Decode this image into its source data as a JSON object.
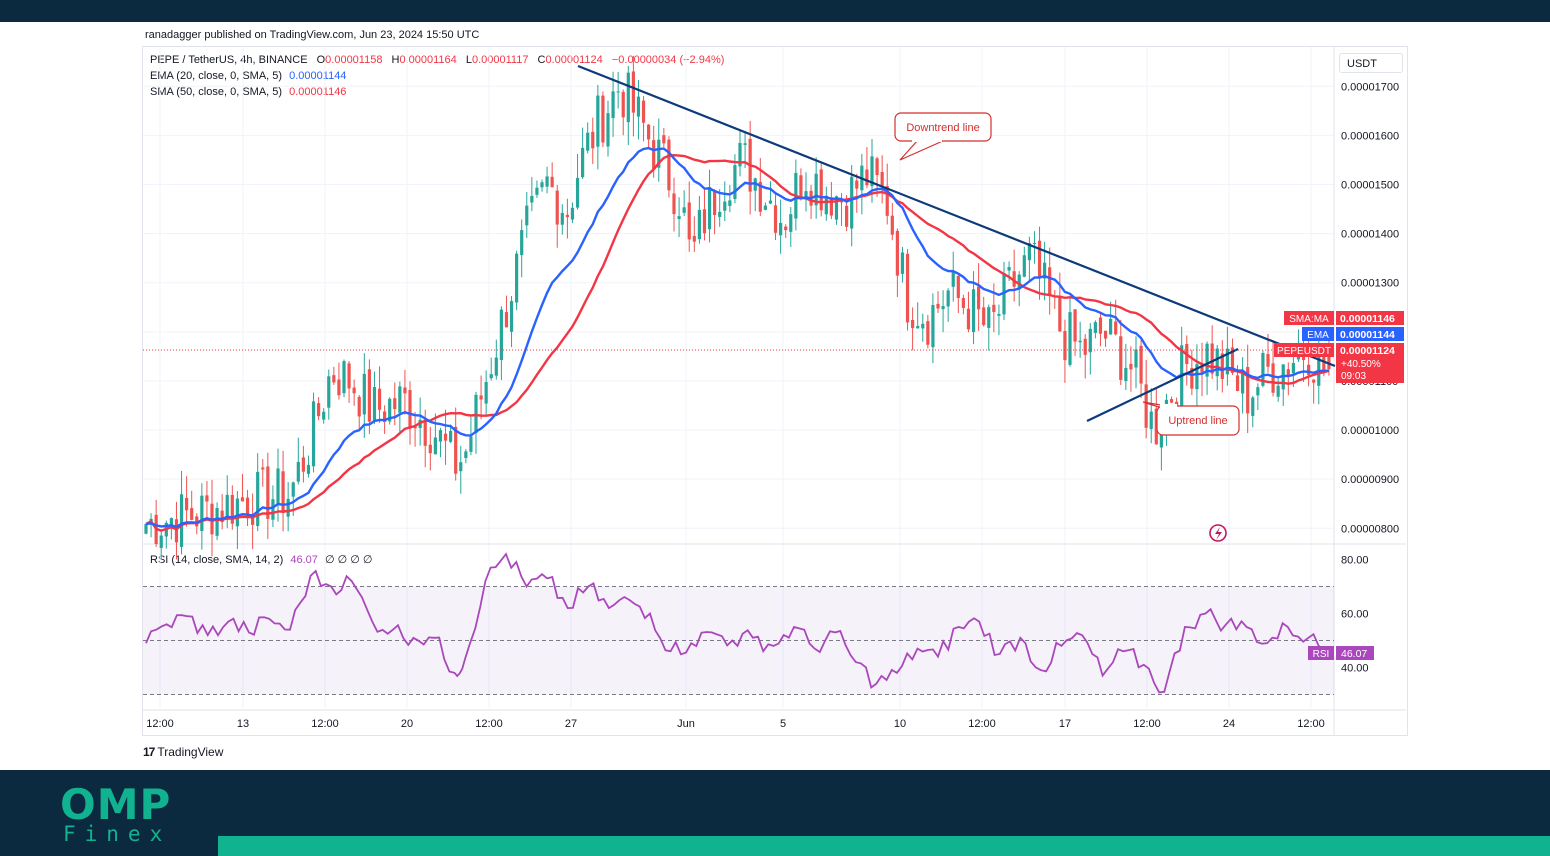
{
  "header": {
    "published": "ranadagger published on TradingView.com, Jun 23, 2024 15:50 UTC"
  },
  "legend": {
    "symbol": "PEPE / TetherUS, 4h, BINANCE",
    "o_label": "O",
    "o_value": "0.00001158",
    "h_label": "H",
    "h_value": "0.00001164",
    "l_label": "L",
    "l_value": "0.00001117",
    "c_label": "C",
    "c_value": "0.00001124",
    "change": "−0.00000034 (−2.94%)",
    "ema_label": "EMA (20, close, 0, SMA, 5)",
    "ema_value": "0.00001144",
    "sma_label": "SMA (50, close, 0, SMA, 5)",
    "sma_value": "0.00001146",
    "rsi_label": "RSI (14, close, SMA, 14, 2)",
    "rsi_value": "46.07",
    "rsi_extra": "∅ ∅ ∅ ∅"
  },
  "price_axis": {
    "unit": "USDT"
  },
  "annotations": {
    "downtrend": "Downtrend line",
    "uptrend": "Uptrend line"
  },
  "price_labels": {
    "sma_tag": "SMA:MA",
    "sma_value": "0.00001146",
    "ema_tag": "EMA",
    "ema_value": "0.00001144",
    "symbol_tag": "PEPEUSDT",
    "last_value": "0.00001124",
    "change_pct": "+40.50%",
    "countdown": "09:03",
    "rsi_tag": "RSI",
    "rsi_value": "46.07"
  },
  "branding": {
    "tradingview": "TradingView",
    "logo_main": "OMP",
    "logo_sub": "Finex"
  },
  "colors": {
    "up": "#26a69a",
    "down": "#ef5350",
    "ema": "#2962ff",
    "sma": "#f23645",
    "rsi": "#ab47bc",
    "trend": "#0d3a7a",
    "accent": "#11b28f",
    "navy": "#0b2a3f"
  },
  "chart_data": [
    {
      "type": "candlestick",
      "title": "PEPE / TetherUS, 4h, BINANCE",
      "ylabel": "USDT",
      "ylim": [
        7.7e-06,
        1.78e-05
      ],
      "y_ticks": [
        "0.00001700",
        "0.00001600",
        "0.00001500",
        "0.00001400",
        "0.00001300",
        "0.00001200",
        "0.00001100",
        "0.00001000",
        "0.00000900",
        "0.00000800"
      ],
      "x_ticks": [
        "12:00",
        "13",
        "12:00",
        "20",
        "12:00",
        "27",
        "Jun",
        "5",
        "10",
        "12:00",
        "17",
        "12:00",
        "24",
        "12:00"
      ],
      "close_path": [
        [
          0,
          8.1e-06
        ],
        [
          5,
          8.3e-06
        ],
        [
          10,
          8.6e-06
        ],
        [
          14,
          8.7e-06
        ],
        [
          16,
          9.8e-06
        ],
        [
          18,
          1.12e-05
        ],
        [
          20,
          1.1e-05
        ],
        [
          22,
          1.04e-05
        ],
        [
          25,
          1.06e-05
        ],
        [
          28,
          1e-05
        ],
        [
          30,
          9.3e-06
        ],
        [
          31,
          9.5e-06
        ],
        [
          33,
          1.1e-05
        ],
        [
          35,
          1.25e-05
        ],
        [
          37,
          1.4e-05
        ],
        [
          39,
          1.5e-05
        ],
        [
          41,
          1.45e-05
        ],
        [
          42,
          1.53e-05
        ],
        [
          44,
          1.63e-05
        ],
        [
          46,
          1.7e-05
        ],
        [
          48,
          1.63e-05
        ],
        [
          50,
          1.55e-05
        ],
        [
          52,
          1.47e-05
        ],
        [
          53,
          1.34e-05
        ],
        [
          54,
          1.42e-05
        ],
        [
          56,
          1.51e-05
        ],
        [
          58,
          1.55e-05
        ],
        [
          60,
          1.49e-05
        ],
        [
          62,
          1.43e-05
        ],
        [
          64,
          1.53e-05
        ],
        [
          66,
          1.49e-05
        ],
        [
          68,
          1.47e-05
        ],
        [
          70,
          1.52e-05
        ],
        [
          72,
          1.47e-05
        ],
        [
          73,
          1.37e-05
        ],
        [
          74,
          1.27e-05
        ],
        [
          76,
          1.23e-05
        ],
        [
          78,
          1.28e-05
        ],
        [
          80,
          1.25e-05
        ],
        [
          82,
          1.2e-05
        ],
        [
          84,
          1.29e-05
        ],
        [
          86,
          1.35e-05
        ],
        [
          87,
          1.3e-05
        ],
        [
          89,
          1.2e-05
        ],
        [
          91,
          1.16e-05
        ],
        [
          93,
          1.2e-05
        ],
        [
          95,
          1.15e-05
        ],
        [
          96,
          1.12e-05
        ],
        [
          98,
          1e-05
        ],
        [
          99,
          1.05e-05
        ],
        [
          101,
          1.13e-05
        ],
        [
          103,
          1.16e-05
        ],
        [
          105,
          1.12e-05
        ],
        [
          107,
          1.07e-05
        ],
        [
          109,
          1.12e-05
        ],
        [
          111,
          1.14e-05
        ],
        [
          113,
          1.17e-05
        ],
        [
          114,
          1.13e-05
        ],
        [
          115,
          1.124e-05
        ]
      ],
      "series": [
        {
          "name": "EMA (20, close, 0, SMA, 5)",
          "last": 1.144e-05
        },
        {
          "name": "SMA (50, close, 0, SMA, 5)",
          "last": 1.146e-05
        }
      ],
      "annotations": [
        "Downtrend line",
        "Uptrend line"
      ],
      "last_price": 1.124e-05
    },
    {
      "type": "line",
      "title": "RSI (14, close, SMA, 14, 2)",
      "ylim": [
        25,
        85
      ],
      "y_ticks": [
        "80.00",
        "60.00",
        "40.00"
      ],
      "bands": [
        30,
        70
      ],
      "x": [
        0,
        2,
        4,
        6,
        8,
        10,
        12,
        14,
        16,
        18,
        20,
        22,
        24,
        26,
        28,
        30,
        31,
        33,
        35,
        37,
        39,
        41,
        43,
        45,
        47,
        49,
        51,
        53,
        55,
        57,
        59,
        61,
        63,
        65,
        67,
        69,
        71,
        73,
        75,
        77,
        79,
        81,
        83,
        85,
        87,
        89,
        91,
        93,
        95,
        97,
        99,
        101,
        103,
        105,
        107,
        109,
        111,
        113,
        115
      ],
      "values": [
        49,
        56,
        59,
        52,
        57,
        53,
        58,
        54,
        74,
        70,
        72,
        57,
        54,
        51,
        51,
        38,
        43,
        72,
        82,
        70,
        73,
        62,
        70,
        62,
        65,
        60,
        46,
        49,
        53,
        50,
        51,
        48,
        55,
        47,
        53,
        42,
        34,
        38,
        47,
        44,
        55,
        57,
        45,
        51,
        39,
        48,
        52,
        37,
        46,
        41,
        31,
        55,
        60,
        56,
        55,
        49,
        55,
        51,
        46.07
      ],
      "last": 46.07
    }
  ]
}
